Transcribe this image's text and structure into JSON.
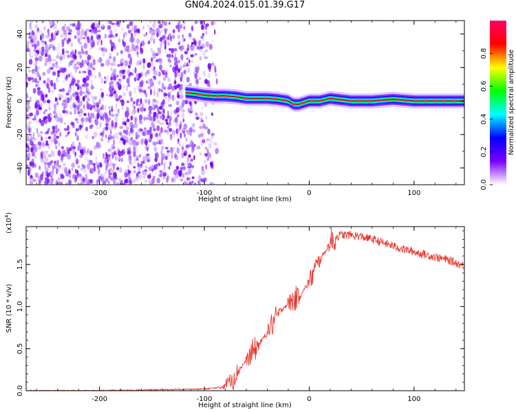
{
  "title": "GN04.2024.015.01.39.G17",
  "chart_data": [
    {
      "type": "heatmap",
      "name": "spectrogram",
      "xlabel": "Height of straight line (km)",
      "ylabel": "Frequency (Hz)",
      "xlim": [
        -270,
        148
      ],
      "ylim": [
        -50,
        48
      ],
      "x_ticks": [
        -200,
        -100,
        0,
        100
      ],
      "y_ticks": [
        -40,
        -20,
        0,
        20,
        40
      ],
      "grid": false,
      "noise_region_x": [
        -270,
        -88
      ],
      "ridge": {
        "x": [
          -118,
          -110,
          -100,
          -90,
          -80,
          -70,
          -60,
          -50,
          -40,
          -30,
          -20,
          -15,
          -10,
          0,
          10,
          20,
          40,
          60,
          80,
          100,
          120,
          148
        ],
        "y": [
          5,
          4.5,
          3.5,
          3,
          3,
          2.5,
          1.5,
          1.5,
          1.5,
          1,
          0,
          -2,
          -2,
          0,
          0,
          1.5,
          0,
          0,
          1,
          0,
          0,
          0
        ]
      },
      "colorbar": {
        "label": "Normalized spectral amplitude",
        "ticks": [
          0.0,
          0.2,
          0.4,
          0.6,
          0.8
        ],
        "range": [
          0,
          1
        ],
        "colors": [
          "#ffffff",
          "#7b00ff",
          "#0000ff",
          "#00ffff",
          "#00ff00",
          "#ffff00",
          "#ff0000",
          "#ff0066"
        ]
      }
    },
    {
      "type": "line",
      "name": "snr",
      "xlabel": "Height of straight line (km)",
      "ylabel": "SNR (10 * v/v)",
      "y_multiplier": "(x10",
      "y_multiplier_exp": "4",
      "y_multiplier_close": ")",
      "xlim": [
        -270,
        148
      ],
      "ylim": [
        0,
        1.95
      ],
      "x_ticks": [
        -200,
        -100,
        0,
        100
      ],
      "y_ticks": [
        0.0,
        0.5,
        1.0,
        1.5
      ],
      "y_tick_labels": [
        "0.0",
        "0.5",
        "1.0",
        "1.5"
      ],
      "grid": false,
      "color": "#e8332a",
      "series": [
        {
          "x": [
            -270,
            -200,
            -150,
            -100,
            -85,
            -80,
            -75,
            -70,
            -65,
            -60,
            -55,
            -50,
            -45,
            -40,
            -35,
            -30,
            -25,
            -20,
            -15,
            -10,
            -5,
            0,
            5,
            10,
            15,
            20,
            25,
            30,
            40,
            50,
            60,
            70,
            80,
            90,
            100,
            110,
            120,
            130,
            140,
            148
          ],
          "y": [
            0.0,
            0.0,
            0.01,
            0.02,
            0.04,
            0.08,
            0.14,
            0.2,
            0.28,
            0.36,
            0.44,
            0.52,
            0.6,
            0.7,
            0.8,
            0.9,
            0.98,
            1.04,
            1.08,
            1.12,
            1.2,
            1.3,
            1.42,
            1.55,
            1.65,
            1.75,
            1.82,
            1.85,
            1.85,
            1.83,
            1.8,
            1.76,
            1.72,
            1.68,
            1.65,
            1.62,
            1.59,
            1.56,
            1.52,
            1.48
          ]
        }
      ]
    }
  ]
}
